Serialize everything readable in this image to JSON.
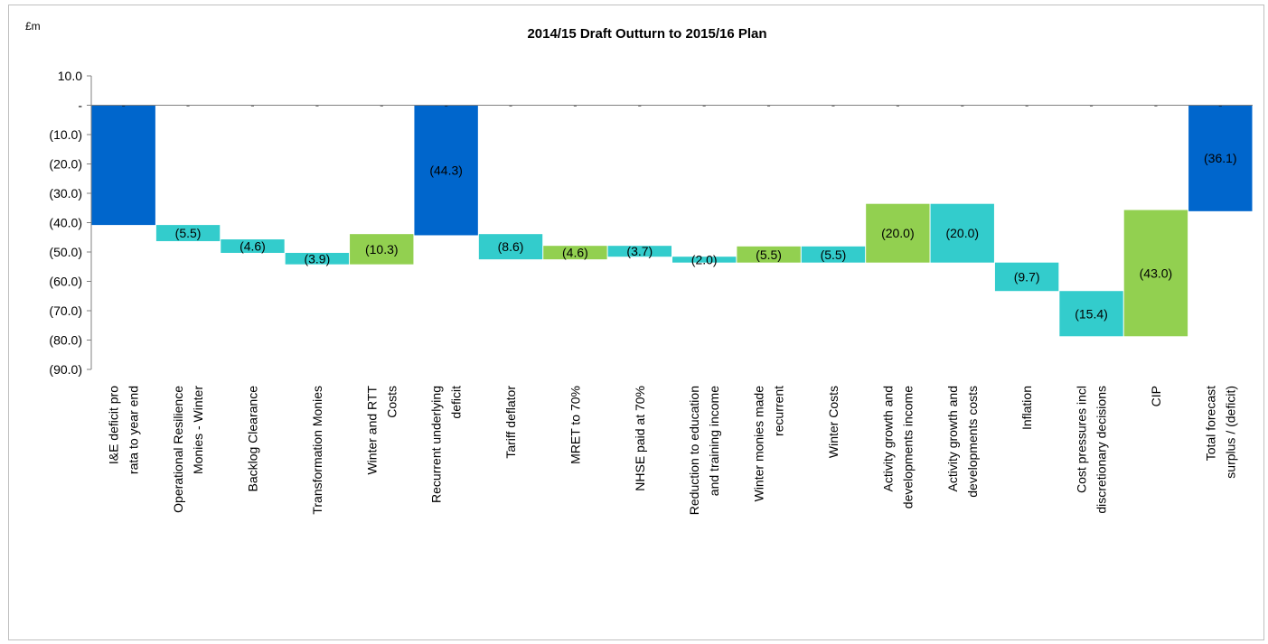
{
  "chart_data": {
    "type": "bar",
    "subtype": "waterfall",
    "title": "2014/15 Draft Outturn to 2015/16 Plan",
    "unit_label": "£m",
    "ylim": [
      -90,
      10
    ],
    "yticks": [
      {
        "value": 10,
        "label": "10.0"
      },
      {
        "value": 0,
        "label": "-"
      },
      {
        "value": -10,
        "label": "(10.0)"
      },
      {
        "value": -20,
        "label": "(20.0)"
      },
      {
        "value": -30,
        "label": "(30.0)"
      },
      {
        "value": -40,
        "label": "(40.0)"
      },
      {
        "value": -50,
        "label": "(50.0)"
      },
      {
        "value": -60,
        "label": "(60.0)"
      },
      {
        "value": -70,
        "label": "(70.0)"
      },
      {
        "value": -80,
        "label": "(80.0)"
      },
      {
        "value": -90,
        "label": "(90.0)"
      }
    ],
    "colors": {
      "total": "#0066cc",
      "adverse": "#33cccc",
      "favourable": "#92d050"
    },
    "zero_label": "-",
    "bars": [
      {
        "category": [
          "I&E deficit pro",
          "rata to year end"
        ],
        "start": 0,
        "end": -40.8,
        "kind": "total",
        "label": ""
      },
      {
        "category": [
          "Operational Resilience",
          "Monies - Winter"
        ],
        "start": -40.8,
        "end": -46.3,
        "kind": "adverse",
        "label": "(5.5)"
      },
      {
        "category": [
          "Backlog Clearance"
        ],
        "start": -45.7,
        "end": -50.3,
        "kind": "adverse",
        "label": "(4.6)"
      },
      {
        "category": [
          "Transformation Monies"
        ],
        "start": -50.3,
        "end": -54.2,
        "kind": "adverse",
        "label": "(3.9)"
      },
      {
        "category": [
          "Winter and RTT",
          "Costs"
        ],
        "start": -54.2,
        "end": -43.9,
        "kind": "favourable",
        "label": "(10.3)"
      },
      {
        "category": [
          "Recurrent underlying",
          "deficit"
        ],
        "start": 0,
        "end": -44.3,
        "kind": "total",
        "label": "(44.3)"
      },
      {
        "category": [
          "Tariff deflator"
        ],
        "start": -43.9,
        "end": -52.5,
        "kind": "adverse",
        "label": "(8.6)"
      },
      {
        "category": [
          "MRET to 70%"
        ],
        "start": -52.5,
        "end": -47.9,
        "kind": "favourable",
        "label": "(4.6)"
      },
      {
        "category": [
          "NHSE paid at 70%"
        ],
        "start": -47.9,
        "end": -51.6,
        "kind": "adverse",
        "label": "(3.7)"
      },
      {
        "category": [
          "Reduction to education",
          "and training income"
        ],
        "start": -51.6,
        "end": -53.6,
        "kind": "adverse",
        "label": "(2.0)"
      },
      {
        "category": [
          "Winter monies made",
          "recurrent"
        ],
        "start": -53.6,
        "end": -48.1,
        "kind": "favourable",
        "label": "(5.5)"
      },
      {
        "category": [
          "Winter Costs"
        ],
        "start": -48.1,
        "end": -53.6,
        "kind": "adverse",
        "label": "(5.5)"
      },
      {
        "category": [
          "Activity growth and",
          "developments income"
        ],
        "start": -53.6,
        "end": -33.6,
        "kind": "favourable",
        "label": "(20.0)"
      },
      {
        "category": [
          "Activity growth and",
          "developments costs"
        ],
        "start": -33.6,
        "end": -53.6,
        "kind": "adverse",
        "label": "(20.0)"
      },
      {
        "category": [
          "Inflation"
        ],
        "start": -53.6,
        "end": -63.3,
        "kind": "adverse",
        "label": "(9.7)"
      },
      {
        "category": [
          "Cost pressures incl",
          "discretionary decisions"
        ],
        "start": -63.3,
        "end": -78.7,
        "kind": "adverse",
        "label": "(15.4)"
      },
      {
        "category": [
          "CIP"
        ],
        "start": -78.7,
        "end": -35.7,
        "kind": "favourable",
        "label": "(43.0)"
      },
      {
        "category": [
          "Total forecast",
          "surplus / (deficit)"
        ],
        "start": 0,
        "end": -36.1,
        "kind": "total",
        "label": "(36.1)"
      }
    ]
  }
}
